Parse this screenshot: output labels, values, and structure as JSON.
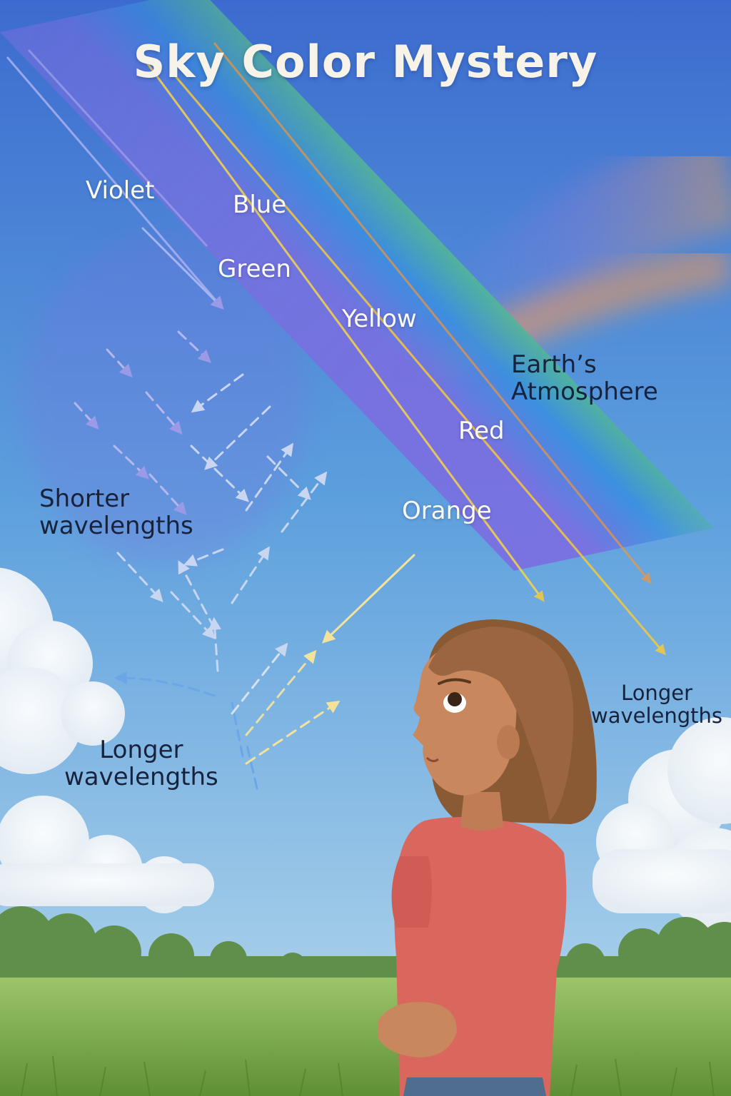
{
  "title": "Sky Color Mystery",
  "beam_labels": {
    "violet": "Violet",
    "blue": "Blue",
    "green": "Green",
    "yellow": "Yellow",
    "red": "Red",
    "orange": "Orange"
  },
  "atmosphere_label": [
    "Earth’s",
    "Atmosphere"
  ],
  "shorter_label": [
    "Shorter",
    "wavelengths"
  ],
  "longer_left_label": [
    "Longer",
    "wavelengths"
  ],
  "longer_right_label": [
    "Longer",
    "wavelengths"
  ],
  "colors": {
    "violet": "#7a6fe0",
    "blue": "#3a8fe0",
    "green": "#5cc77a",
    "yellow": "#f2d84a",
    "orange": "#f5a04a",
    "red": "#f07a3a",
    "sky_top": "#3f6fd0",
    "sky_bottom": "#a9d2ea",
    "grass": "#7fae4e",
    "shirt": "#d9675e",
    "hair": "#8a5a35",
    "skin": "#c9875d"
  }
}
